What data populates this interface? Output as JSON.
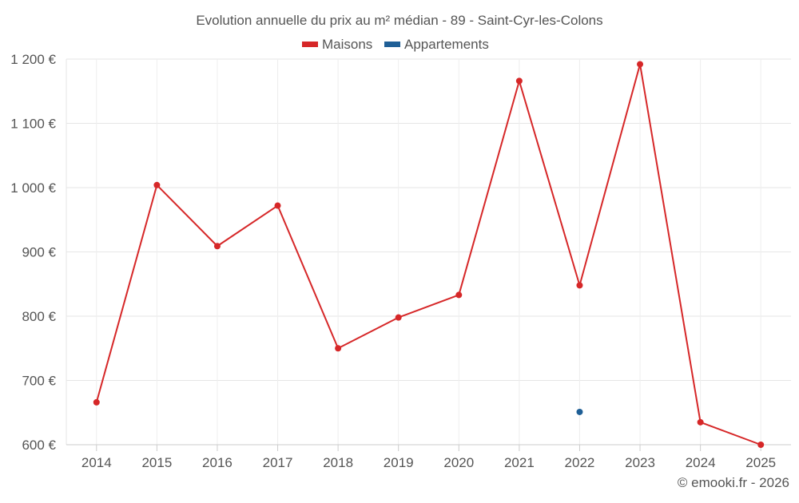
{
  "chart_data": {
    "type": "line",
    "title": "Evolution annuelle du prix au m² médian - 89 - Saint-Cyr-les-Colons",
    "categories": [
      "2014",
      "2015",
      "2016",
      "2017",
      "2018",
      "2019",
      "2020",
      "2021",
      "2022",
      "2023",
      "2024",
      "2025"
    ],
    "series": [
      {
        "name": "Maisons",
        "color": "#d62728",
        "values": [
          666,
          1004,
          909,
          972,
          750,
          798,
          833,
          1166,
          848,
          1192,
          635,
          600
        ]
      },
      {
        "name": "Appartements",
        "color": "#1f5f96",
        "values": [
          null,
          null,
          null,
          null,
          null,
          null,
          null,
          null,
          651,
          null,
          null,
          null
        ]
      }
    ],
    "ylim": [
      600,
      1200
    ],
    "yticks": [
      600,
      700,
      800,
      900,
      1000,
      1100,
      1200
    ],
    "ytick_labels": [
      "600 €",
      "700 €",
      "800 €",
      "900 €",
      "1 000 €",
      "1 100 €",
      "1 200 €"
    ],
    "xlabel": "",
    "ylabel": "",
    "grid": true,
    "legend_position": "top-center"
  },
  "credit": "© emooki.fr - 2026"
}
